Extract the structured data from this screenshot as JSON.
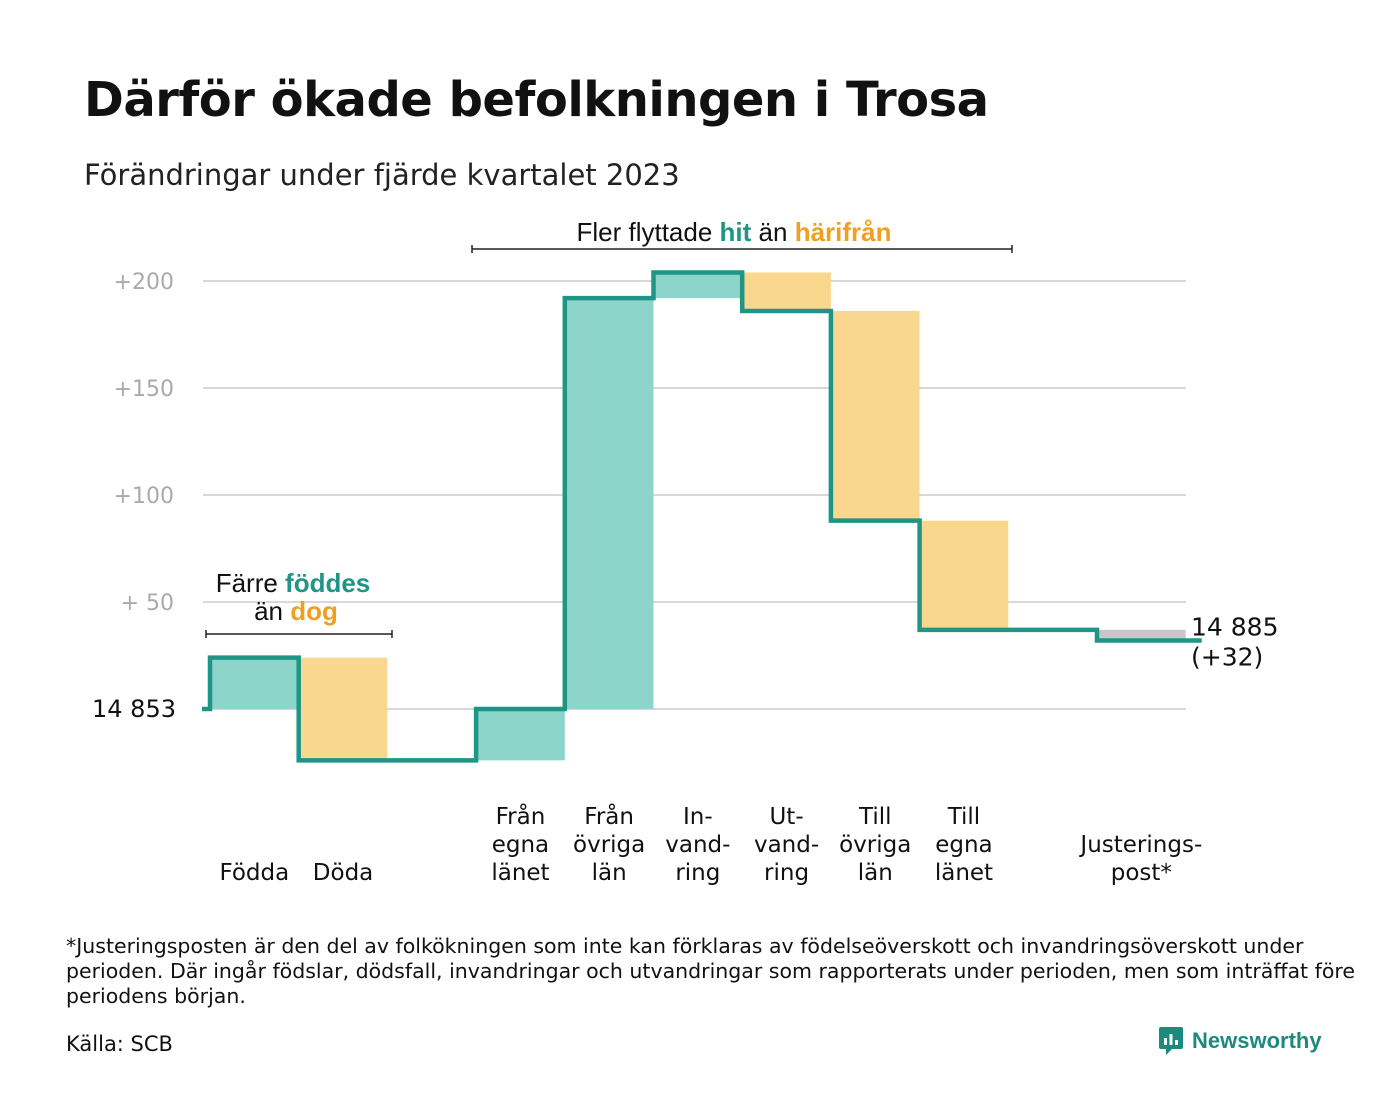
{
  "title": "Därför ökade befolkningen i Trosa",
  "subtitle": "Förändringar under fjärde kvartalet 2023",
  "footnote": "*Justeringsposten är den del av folkökningen som inte kan förklaras av födelseöverskott och invandringsöverskott under perioden. Där ingår födslar, dödsfall, invandringar och utvandringar som rapporterats under perioden, men som inträffat före periodens början.",
  "source": "Källa: SCB",
  "brand": "Newsworthy",
  "chart_data": {
    "type": "waterfall",
    "start_value": 14853,
    "start_label": "14  853",
    "end_label_value": "14 885",
    "end_label_change": "(+32)",
    "y_ticks": [
      {
        "value": 200,
        "label": "+200"
      },
      {
        "value": 150,
        "label": "+150"
      },
      {
        "value": 100,
        "label": "+100"
      },
      {
        "value": 50,
        "label": "+  50"
      }
    ],
    "ylim": [
      -32,
      210
    ],
    "steps": [
      {
        "label_lines": [
          "Födda"
        ],
        "change": 24,
        "kind": "in"
      },
      {
        "label_lines": [
          "Döda"
        ],
        "change": -48,
        "kind": "out"
      },
      {
        "label_lines": [
          ""
        ],
        "change": 0,
        "kind": "none"
      },
      {
        "label_lines": [
          "Från",
          "egna",
          "länet"
        ],
        "change": 24,
        "kind": "in"
      },
      {
        "label_lines": [
          "Från",
          "övriga",
          "län"
        ],
        "change": 192,
        "kind": "in"
      },
      {
        "label_lines": [
          "In-",
          "vand-",
          "ring"
        ],
        "change": 12,
        "kind": "in"
      },
      {
        "label_lines": [
          "Ut-",
          "vand-",
          "ring"
        ],
        "change": -18,
        "kind": "out"
      },
      {
        "label_lines": [
          "Till",
          "övriga",
          "län"
        ],
        "change": -98,
        "kind": "out"
      },
      {
        "label_lines": [
          "Till",
          "egna",
          "länet"
        ],
        "change": -51,
        "kind": "out"
      },
      {
        "label_lines": [
          ""
        ],
        "change": 0,
        "kind": "none"
      },
      {
        "label_lines": [
          "Justerings-",
          "post*"
        ],
        "change": -5,
        "kind": "adjust"
      }
    ],
    "annotations": {
      "births": {
        "prefix": "Färre",
        "highlight_in": "föddes",
        "middle": "än",
        "highlight_out": "dog"
      },
      "moves": {
        "prefix": "Fler flyttade",
        "highlight_in": "hit",
        "middle": "än",
        "highlight_out": "härifrån"
      }
    },
    "colors": {
      "in_fill": "#8dd4cb",
      "out_fill": "#fad78e",
      "adjust_fill": "#c8c8c8",
      "line": "#1f9586",
      "in_text": "#1f9586",
      "out_text": "#f0a020",
      "grid": "#d9d9d9",
      "tick_text": "#aaaaaa"
    }
  }
}
